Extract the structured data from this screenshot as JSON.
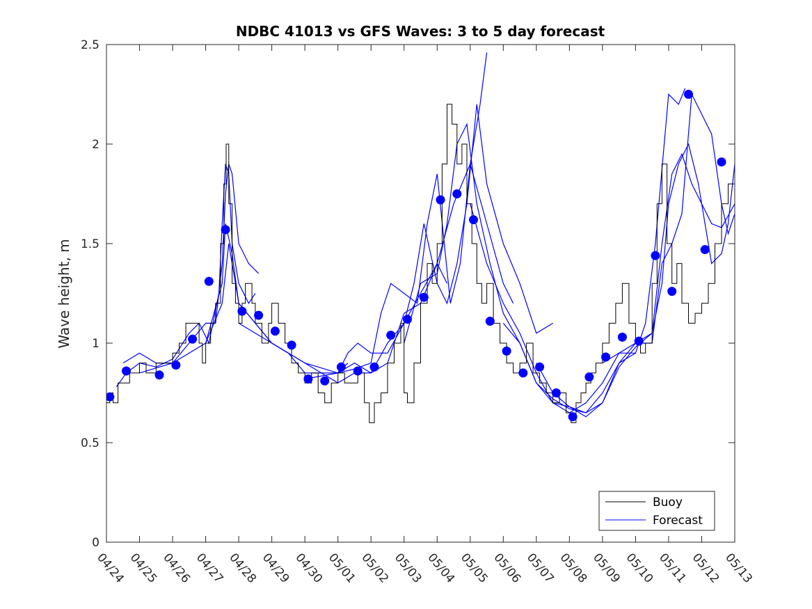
{
  "chart_data": {
    "type": "line",
    "title": "NDBC 41013 vs GFS Waves: 3 to 5 day forecast",
    "xlabel": "",
    "ylabel": "Wave height, m",
    "xlim": [
      0,
      19
    ],
    "ylim": [
      0,
      2.5
    ],
    "x_tick_labels": [
      "04/24",
      "04/25",
      "04/26",
      "04/27",
      "04/28",
      "04/29",
      "04/30",
      "05/01",
      "05/02",
      "05/03",
      "05/04",
      "05/05",
      "05/06",
      "05/07",
      "05/08",
      "05/09",
      "05/10",
      "05/11",
      "05/12",
      "05/13"
    ],
    "y_ticks": [
      0,
      0.5,
      1,
      1.5,
      2,
      2.5
    ],
    "y_tick_labels": [
      "0",
      "0.5",
      "1",
      "1.5",
      "2",
      "2.5"
    ],
    "grid": false,
    "legend": {
      "position": "bottom-right",
      "entries": [
        "Buoy",
        "Forecast"
      ]
    },
    "colors": {
      "buoy": "#000000",
      "forecast": "#0000ff",
      "markers": "#0000ff"
    },
    "series": [
      {
        "name": "Buoy",
        "type": "step-line",
        "x": [
          0,
          0.1,
          0.2,
          0.35,
          0.5,
          0.7,
          1.0,
          1.2,
          1.5,
          1.8,
          2.0,
          2.2,
          2.4,
          2.6,
          2.8,
          2.9,
          3.0,
          3.15,
          3.3,
          3.45,
          3.55,
          3.62,
          3.7,
          3.8,
          3.9,
          4.0,
          4.1,
          4.2,
          4.4,
          4.5,
          4.7,
          4.9,
          5.0,
          5.2,
          5.4,
          5.6,
          5.8,
          6.0,
          6.2,
          6.4,
          6.6,
          6.8,
          7.0,
          7.2,
          7.4,
          7.6,
          7.8,
          7.95,
          8.1,
          8.3,
          8.5,
          8.7,
          8.9,
          9.0,
          9.1,
          9.3,
          9.5,
          9.7,
          9.85,
          10.0,
          10.15,
          10.3,
          10.45,
          10.6,
          10.75,
          10.9,
          11.05,
          11.2,
          11.35,
          11.5,
          11.7,
          11.9,
          12.1,
          12.3,
          12.5,
          12.7,
          12.9,
          13.1,
          13.3,
          13.5,
          13.7,
          13.9,
          14.05,
          14.2,
          14.35,
          14.5,
          14.65,
          14.8,
          15.0,
          15.2,
          15.4,
          15.6,
          15.8,
          16.0,
          16.15,
          16.3,
          16.5,
          16.65,
          16.8,
          16.95,
          17.1,
          17.25,
          17.4,
          17.6,
          17.8,
          18.0,
          18.2,
          18.4,
          18.6,
          18.8,
          19.0
        ],
        "values": [
          0.7,
          0.75,
          0.7,
          0.8,
          0.8,
          0.85,
          0.9,
          0.85,
          0.9,
          0.9,
          0.95,
          1.0,
          1.1,
          1.1,
          1.0,
          0.9,
          1.0,
          1.1,
          1.2,
          1.5,
          1.8,
          2.0,
          1.7,
          1.3,
          1.2,
          1.1,
          1.2,
          1.3,
          1.2,
          1.1,
          1.0,
          1.1,
          1.2,
          1.1,
          1.0,
          0.9,
          0.85,
          0.8,
          0.85,
          0.75,
          0.7,
          0.8,
          0.85,
          0.8,
          0.8,
          0.85,
          0.7,
          0.6,
          0.7,
          0.75,
          0.9,
          1.0,
          1.1,
          0.75,
          0.7,
          0.9,
          1.2,
          1.4,
          1.3,
          1.5,
          1.9,
          2.2,
          2.1,
          1.9,
          2.0,
          1.7,
          1.5,
          1.3,
          1.2,
          1.3,
          1.1,
          1.0,
          0.9,
          0.85,
          0.9,
          1.0,
          0.85,
          0.8,
          0.75,
          0.7,
          0.75,
          0.65,
          0.6,
          0.7,
          0.75,
          0.8,
          0.85,
          0.9,
          1.0,
          1.1,
          1.2,
          1.3,
          1.1,
          1.0,
          0.95,
          1.0,
          1.3,
          1.7,
          1.9,
          1.5,
          1.3,
          1.4,
          1.2,
          1.1,
          1.15,
          1.2,
          1.3,
          1.5,
          1.7,
          1.8,
          1.85
        ]
      },
      {
        "name": "Forecast",
        "type": "line",
        "runs": [
          {
            "x": [
              0.3,
              0.6,
              1.0,
              1.5,
              2.0,
              2.5,
              2.8,
              3.1,
              3.4,
              3.5,
              3.6,
              3.7,
              3.8,
              4.0,
              4.3,
              4.5
            ],
            "values": [
              0.78,
              0.85,
              0.9,
              0.88,
              0.92,
              1.05,
              1.1,
              1.0,
              1.25,
              1.6,
              1.9,
              1.85,
              1.5,
              1.3,
              1.2,
              1.25
            ]
          },
          {
            "x": [
              0.5,
              1.0,
              1.5,
              2.0,
              2.5,
              3.0,
              3.3,
              3.5,
              3.6,
              3.7,
              3.8,
              4.0,
              4.3,
              4.6
            ],
            "values": [
              0.9,
              0.95,
              0.9,
              0.9,
              1.0,
              1.1,
              1.1,
              1.4,
              1.75,
              1.9,
              1.85,
              1.5,
              1.4,
              1.35
            ]
          },
          {
            "x": [
              1.0,
              2.0,
              3.0,
              3.5,
              3.6,
              3.8,
              4.0,
              4.5,
              5.0,
              5.5,
              6.0,
              6.5,
              7.0,
              7.3
            ],
            "values": [
              0.85,
              0.9,
              1.0,
              1.3,
              1.6,
              1.45,
              1.2,
              1.1,
              1.0,
              0.95,
              0.9,
              0.85,
              0.85,
              0.9
            ]
          },
          {
            "x": [
              3.0,
              3.5,
              3.7,
              4.0,
              4.5,
              5.0,
              5.5,
              6.0,
              6.5,
              7.0,
              7.5,
              8.0,
              8.5,
              9.0,
              9.5,
              10.0,
              10.3
            ],
            "values": [
              1.0,
              1.2,
              1.5,
              1.2,
              1.1,
              1.0,
              0.95,
              0.85,
              0.85,
              0.8,
              0.85,
              0.85,
              0.9,
              1.15,
              1.2,
              1.4,
              1.3
            ]
          },
          {
            "x": [
              4.0,
              5.0,
              6.0,
              7.0,
              7.3,
              7.6,
              8.0,
              8.5,
              9.0,
              9.5,
              10.0,
              10.5,
              11.0,
              11.5,
              12.0,
              12.3
            ],
            "values": [
              1.1,
              1.0,
              0.9,
              0.85,
              0.95,
              1.0,
              0.95,
              0.95,
              1.1,
              1.25,
              1.4,
              1.7,
              1.9,
              1.6,
              1.3,
              1.2
            ]
          },
          {
            "x": [
              6.0,
              7.0,
              7.5,
              8.0,
              8.5,
              9.0,
              9.3,
              9.6,
              10.0,
              10.3,
              10.6,
              10.9,
              11.2,
              11.5,
              12.0,
              12.5,
              13.0,
              13.5
            ],
            "values": [
              0.82,
              0.85,
              0.9,
              0.85,
              1.0,
              1.1,
              1.3,
              1.6,
              1.3,
              1.2,
              1.4,
              1.7,
              2.2,
              1.8,
              1.5,
              1.3,
              1.05,
              1.1
            ]
          },
          {
            "x": [
              7.0,
              7.5,
              8.0,
              8.3,
              8.6,
              9.0,
              9.4,
              9.7,
              10.0,
              10.4,
              10.7,
              11.0,
              11.3,
              11.5
            ],
            "values": [
              0.85,
              0.87,
              0.9,
              1.15,
              1.3,
              1.25,
              1.2,
              1.6,
              1.85,
              1.2,
              1.4,
              1.9,
              2.2,
              2.46
            ]
          },
          {
            "x": [
              9.0,
              9.5,
              10.0,
              10.3,
              10.6,
              10.9,
              11.2,
              11.6,
              12.0,
              12.5,
              13.0,
              13.5,
              14.0,
              14.5,
              15.0,
              15.5,
              16.0
            ],
            "values": [
              1.0,
              1.3,
              1.35,
              1.6,
              2.0,
              2.1,
              1.7,
              1.4,
              1.15,
              1.0,
              0.8,
              0.7,
              0.65,
              0.7,
              0.8,
              0.95,
              0.95
            ]
          },
          {
            "x": [
              11.0,
              11.5,
              12.0,
              12.5,
              13.0,
              13.5,
              14.0,
              14.5,
              15.0,
              15.5,
              16.0,
              16.3,
              16.6,
              17.0,
              17.3,
              17.5
            ],
            "values": [
              1.7,
              1.4,
              1.2,
              1.05,
              0.85,
              0.7,
              0.68,
              0.65,
              0.75,
              0.9,
              0.95,
              1.1,
              1.5,
              2.25,
              2.2,
              2.28
            ]
          },
          {
            "x": [
              12.0,
              12.5,
              13.0,
              13.5,
              14.0,
              14.5,
              15.0,
              15.5,
              16.0,
              16.5,
              16.8,
              17.1,
              17.4,
              17.7,
              18.0,
              18.3,
              18.6,
              19.0
            ],
            "values": [
              1.1,
              1.0,
              0.8,
              0.72,
              0.67,
              0.65,
              0.7,
              0.88,
              0.98,
              1.05,
              1.5,
              1.85,
              1.95,
              1.8,
              1.7,
              1.6,
              1.58,
              1.7
            ]
          },
          {
            "x": [
              13.0,
              13.5,
              14.0,
              14.5,
              15.0,
              15.5,
              16.0,
              16.5,
              16.8,
              17.0,
              17.3,
              17.6,
              17.9,
              18.1,
              18.3,
              18.6,
              18.8,
              19.0
            ],
            "values": [
              0.9,
              0.75,
              0.68,
              0.63,
              0.7,
              0.9,
              1.0,
              1.05,
              1.3,
              1.7,
              1.9,
              2.0,
              1.8,
              1.6,
              1.4,
              1.45,
              1.6,
              1.9
            ]
          },
          {
            "x": [
              15.0,
              15.5,
              16.0,
              16.5,
              16.8,
              17.1,
              17.4,
              17.7,
              18.0,
              18.3,
              18.6,
              18.8,
              19.0
            ],
            "values": [
              0.9,
              0.95,
              1.0,
              1.0,
              1.4,
              1.5,
              1.65,
              2.25,
              2.15,
              2.05,
              1.7,
              1.55,
              1.65
            ]
          }
        ]
      },
      {
        "name": "",
        "type": "scatter",
        "x": [
          0.1,
          0.6,
          1.6,
          2.1,
          2.6,
          3.1,
          3.6,
          4.1,
          4.6,
          5.1,
          5.6,
          6.1,
          6.6,
          7.1,
          7.6,
          8.1,
          8.6,
          9.1,
          9.6,
          10.1,
          10.6,
          11.1,
          11.6,
          12.1,
          12.6,
          13.1,
          13.6,
          14.1,
          14.6,
          15.1,
          15.6,
          16.1,
          16.6,
          17.1,
          17.6,
          18.1,
          18.6
        ],
        "values": [
          0.73,
          0.86,
          0.84,
          0.89,
          1.02,
          1.31,
          1.57,
          1.16,
          1.14,
          1.06,
          0.99,
          0.82,
          0.81,
          0.88,
          0.86,
          0.88,
          1.04,
          1.12,
          1.23,
          1.72,
          1.75,
          1.62,
          1.11,
          0.96,
          0.85,
          0.88,
          0.75,
          0.63,
          0.83,
          0.93,
          1.03,
          1.01,
          1.44,
          1.26,
          2.25,
          1.47,
          1.91
        ]
      }
    ]
  }
}
